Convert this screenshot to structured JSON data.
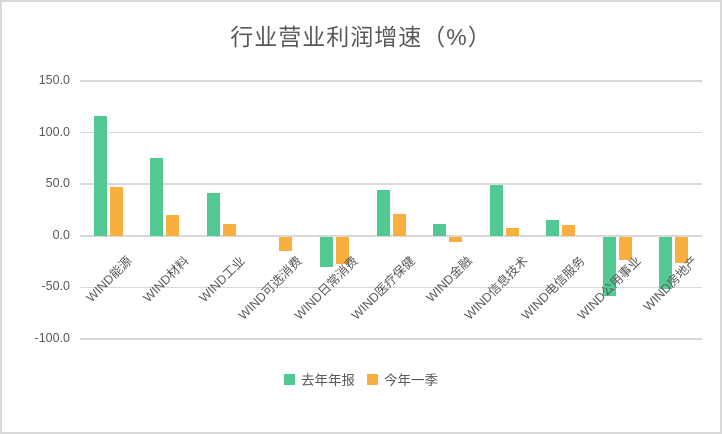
{
  "window": {
    "title": "行业营业利润增速（%）"
  },
  "chart_data": {
    "type": "bar",
    "title": "行业营业利润增速（%）",
    "categories": [
      "WIND能源",
      "WIND材料",
      "WIND工业",
      "WIND可选消费",
      "WIND日常消费",
      "WIND医疗保健",
      "WIND金融",
      "WIND信息技术",
      "WIND电信服务",
      "WIND公用事业",
      "WIND房地产"
    ],
    "series": [
      {
        "name": "去年年报",
        "color": "#52c892",
        "values": [
          116,
          75,
          41,
          0,
          -29,
          44,
          11,
          49,
          15,
          -57,
          -51
        ]
      },
      {
        "name": "今年一季",
        "color": "#f9af40",
        "values": [
          47,
          20,
          11,
          -14,
          -26,
          21,
          -5,
          8,
          10,
          -22,
          -25
        ]
      }
    ],
    "xlabel": "",
    "ylabel": "",
    "ylim": [
      -100,
      150
    ],
    "ytick_interval": 50,
    "ytick_labels": [
      "150.0",
      "100.0",
      "50.0",
      "0.0",
      "-50.0",
      "-100.0"
    ],
    "grid": true,
    "legend_position": "bottom"
  },
  "colors": {
    "series_last_year": "#52c892",
    "series_this_quarter": "#f9af40",
    "gridline": "#d9d9d9",
    "frame_border": "#d9d9d9",
    "text": "#595959",
    "background": "#ffffff"
  }
}
